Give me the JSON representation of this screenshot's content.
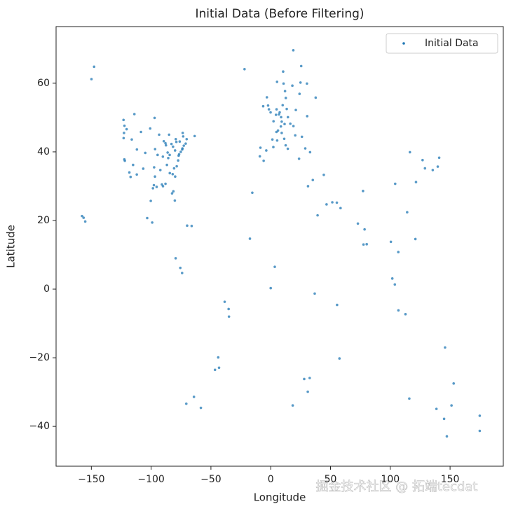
{
  "chart_data": {
    "type": "scatter",
    "title": "Initial Data (Before Filtering)",
    "x_label": "Longitude",
    "y_label": "Latitude",
    "watermark": "掘金技术社区 @ 拓端tecdat",
    "xlim": [
      -179.5,
      194.5
    ],
    "ylim": [
      -51.6,
      76.5
    ],
    "xticks": [
      {
        "value": -150,
        "label": "−150"
      },
      {
        "value": -100,
        "label": "−100"
      },
      {
        "value": -50,
        "label": "−50"
      },
      0,
      50,
      100,
      150
    ],
    "yticks": [
      {
        "value": -40,
        "label": "−40"
      },
      {
        "value": -20,
        "label": "−20"
      },
      0,
      20,
      40,
      60
    ],
    "legend": "upper right",
    "x": [
      -122.4,
      -122,
      -118.2,
      -117.2,
      -122.3,
      -122.7,
      -112,
      -111.9,
      -104.9,
      -97.7,
      -96.8,
      -95.4,
      -98.5,
      -90.1,
      -87.6,
      -88,
      -93.3,
      -90.2,
      -94.6,
      -86.8,
      -84.4,
      -80.2,
      -81.4,
      -82.5,
      -80.8,
      -78.6,
      -77,
      -76.6,
      -75.2,
      -74,
      -73.8,
      -71.1,
      -72.7,
      -83,
      -81.7,
      -84.5,
      -86.2,
      -80,
      -76.1,
      -78.9,
      -106.6,
      -115.1,
      -100.8,
      -96.7,
      -97.5,
      -92.3,
      -89.4,
      -85.7,
      -77.4,
      -123,
      -120.5,
      -116.2,
      -108.5,
      -70.3,
      -73.2,
      -91,
      -88,
      -82,
      -79.9,
      -85,
      -79.4,
      -73.6,
      -114,
      -123.1,
      -97.1,
      -63.6,
      -99.1,
      -103.3,
      -100.3,
      -66.1,
      -69.9,
      -74.1,
      -75.6,
      -79.5,
      -157.8,
      -156.5,
      -155.1,
      -149.9,
      -147.7,
      -0.1,
      -2.2,
      -3.2,
      -6.3,
      -1.5,
      2.35,
      4.8,
      5.4,
      1.4,
      -3.7,
      2.2,
      -9.1,
      -8.6,
      -5.9,
      4.9,
      4.4,
      8.7,
      13.4,
      10,
      11.6,
      9.2,
      6.9,
      7.5,
      8.5,
      6.1,
      16.4,
      14.4,
      19,
      21,
      12.5,
      9.2,
      11.3,
      14.3,
      23.7,
      26.1,
      20.5,
      12.6,
      18.1,
      11.97,
      10.75,
      5.3,
      10.4,
      24.9,
      25.5,
      24.1,
      18.9,
      30.3,
      37.6,
      30.5,
      28.9,
      32.9,
      -21.9,
      -15.4,
      -17.4,
      3.4,
      0,
      28,
      32.6,
      18.4,
      31,
      36.8,
      31.2,
      35.2,
      44.4,
      46.7,
      55.3,
      51.5,
      58.4,
      39.2,
      72.9,
      77.2,
      80.3,
      77.6,
      78.5,
      100.5,
      101.7,
      103.8,
      106.8,
      112.7,
      121,
      106.7,
      114.1,
      116.4,
      121.5,
      104.1,
      127,
      129,
      135.5,
      139.7,
      140.9,
      151.2,
      145,
      153,
      138.6,
      115.9,
      145.8,
      147.3,
      174.8,
      174.8,
      -58.4,
      -70.6,
      -43.2,
      -46.6,
      -43.9,
      -38.5,
      -34.9,
      -35.2,
      57.5,
      55.5,
      -64.2
    ],
    "series": [
      {
        "name": "Initial Data",
        "color": "#1f77b4",
        "values": [
          37.8,
          37.4,
          34,
          32.7,
          47.6,
          45.5,
          33.4,
          40.7,
          39.7,
          30.3,
          32.8,
          29.8,
          29.4,
          30,
          41.9,
          42.5,
          45,
          38.6,
          39.1,
          36.2,
          33.8,
          25.8,
          28.5,
          27.9,
          35.2,
          35.8,
          38.9,
          39.3,
          40,
          40.7,
          41,
          42.4,
          41.8,
          42.3,
          41.5,
          39.1,
          39.8,
          40.4,
          43,
          42.9,
          35.1,
          36.2,
          46.8,
          40.8,
          35.5,
          34.7,
          43.1,
          38.2,
          37.5,
          44,
          46.6,
          43.6,
          45.8,
          43.7,
          44.5,
          30.5,
          30.7,
          33.5,
          32.8,
          45,
          43.7,
          45.5,
          51,
          49.3,
          49.9,
          44.6,
          19.4,
          20.7,
          25.7,
          18.4,
          18.5,
          4.7,
          6.2,
          9,
          21.3,
          20.8,
          19.7,
          61.2,
          64.8,
          51.5,
          53.5,
          55.9,
          53.3,
          52.4,
          48.9,
          45.8,
          43.3,
          43.6,
          40.4,
          41.4,
          38.7,
          41.2,
          37.4,
          52.4,
          50.8,
          50.1,
          52.5,
          53.6,
          48.1,
          48.8,
          50.9,
          51.5,
          47.4,
          46.2,
          48.2,
          50.1,
          47.5,
          52.2,
          41.9,
          45.5,
          43.8,
          40.9,
          38,
          44.4,
          44.8,
          55.7,
          59.3,
          57.7,
          59.9,
          60.4,
          63.4,
          60.2,
          65,
          56.9,
          69.6,
          59.9,
          55.8,
          50.4,
          41,
          39.9,
          64.1,
          28.1,
          14.7,
          6.5,
          0.3,
          -26.2,
          -25.9,
          -33.9,
          -29.9,
          -1.3,
          30,
          31.8,
          33.3,
          24.7,
          25.2,
          25.3,
          23.6,
          21.5,
          19.1,
          28.6,
          13.1,
          13,
          17.4,
          13.8,
          3.1,
          1.35,
          -6.2,
          -7.3,
          14.6,
          10.8,
          22.4,
          39.9,
          31.2,
          30.7,
          37.6,
          35.2,
          34.7,
          35.7,
          38.3,
          -33.9,
          -37.8,
          -27.5,
          -34.9,
          -31.9,
          -17,
          -42.9,
          -41.3,
          -36.9,
          -34.6,
          -33.4,
          -22.9,
          -23.5,
          -19.9,
          -3.7,
          -8,
          -5.8,
          -20.2,
          -4.6,
          -31.4
        ]
      }
    ]
  }
}
